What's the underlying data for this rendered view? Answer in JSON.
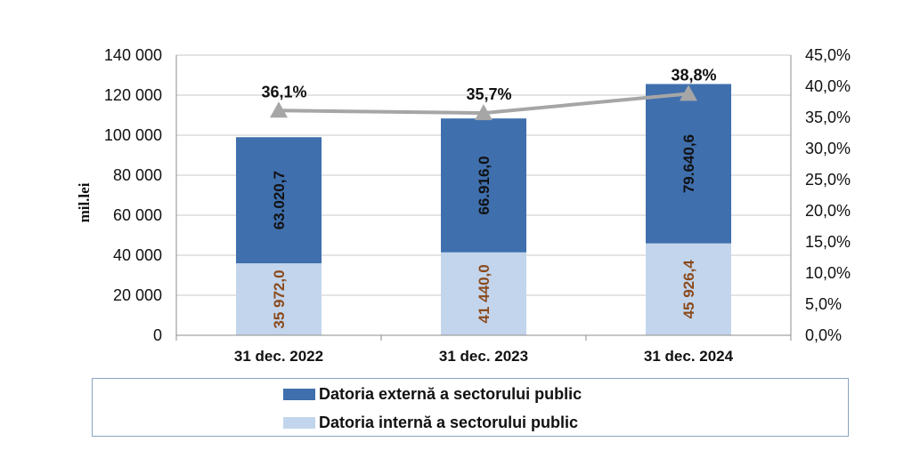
{
  "chart_data": {
    "type": "bar",
    "stacked": true,
    "categories": [
      "31 dec. 2022",
      "31 dec. 2023",
      "31 dec. 2024"
    ],
    "series": [
      {
        "name": "Datoria internă a sectorului public",
        "values": [
          35972.0,
          41440.0,
          45926.4
        ],
        "labels": [
          "35 972,0",
          "41 440,0",
          "45 926,4"
        ],
        "color": "#c3d5ec",
        "label_color": "#8b4a1c"
      },
      {
        "name": "Datoria externă a sectorului public",
        "values": [
          63020.7,
          66916.0,
          79640.6
        ],
        "labels": [
          "63.020,7",
          "66.916,0",
          "79.640,6"
        ],
        "color": "#3f6fad",
        "label_color": "#111111"
      }
    ],
    "line_series": {
      "type": "line",
      "axis": "secondary",
      "values": [
        36.1,
        35.7,
        38.8
      ],
      "labels": [
        "36,1%",
        "35,7%",
        "38,8%"
      ],
      "color": "#a6a6a6",
      "marker": "triangle"
    },
    "ylabel": "mil.lei",
    "ylim": [
      0,
      140000
    ],
    "yticks": [
      "0",
      "20 000",
      "40 000",
      "60 000",
      "80 000",
      "100 000",
      "120 000",
      "140 000"
    ],
    "y2lim": [
      0,
      45
    ],
    "y2ticks": [
      "0,0%",
      "5,0%",
      "10,0%",
      "15,0%",
      "20,0%",
      "25,0%",
      "30,0%",
      "35,0%",
      "40,0%",
      "45,0%"
    ],
    "grid": true,
    "legend": {
      "placement": "bottom",
      "entries": [
        "Datoria externă a sectorului public",
        "Datoria internă a sectorului public"
      ]
    }
  }
}
